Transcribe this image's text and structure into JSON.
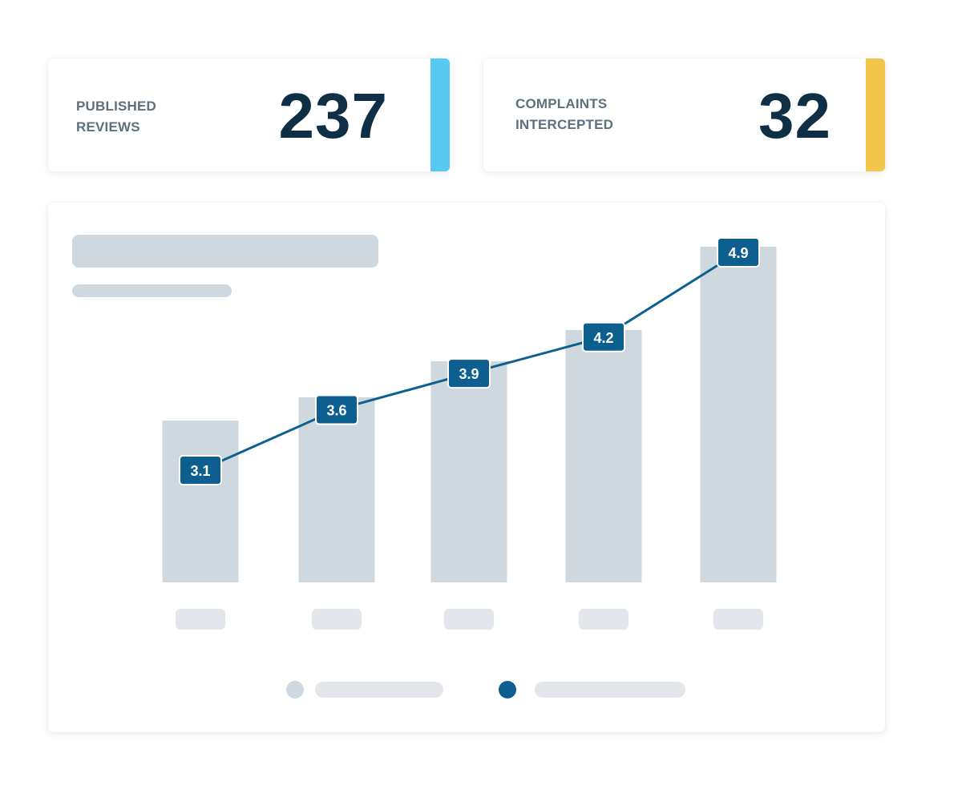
{
  "stats": {
    "published": {
      "label_line1": "PUBLISHED",
      "label_line2": "REVIEWS",
      "value": "237",
      "accent_color": "#56c8f2"
    },
    "complaints": {
      "label_line1": "COMPLAINTS",
      "label_line2": "INTERCEPTED",
      "value": "32",
      "accent_color": "#f2c64a"
    }
  },
  "chart_data": {
    "type": "bar",
    "categories": [
      "",
      "",
      "",
      "",
      ""
    ],
    "title": "",
    "xlabel": "",
    "ylabel": "",
    "series": [
      {
        "type": "line",
        "values": [
          3.1,
          3.6,
          3.9,
          4.2,
          4.9
        ],
        "data_labels": [
          "3.1",
          "3.6",
          "3.9",
          "4.2",
          "4.9"
        ],
        "color": "#0d5f8f"
      }
    ],
    "legend": {
      "placement": "bottom-center",
      "entries": 2
    },
    "grid": false
  },
  "colors": {
    "placeholder": "#cfd8df",
    "placeholder_light": "#e3e7eb",
    "line": "#0d5f8f",
    "label_bg": "#0d5f8f",
    "label_text": "#ffffff"
  }
}
